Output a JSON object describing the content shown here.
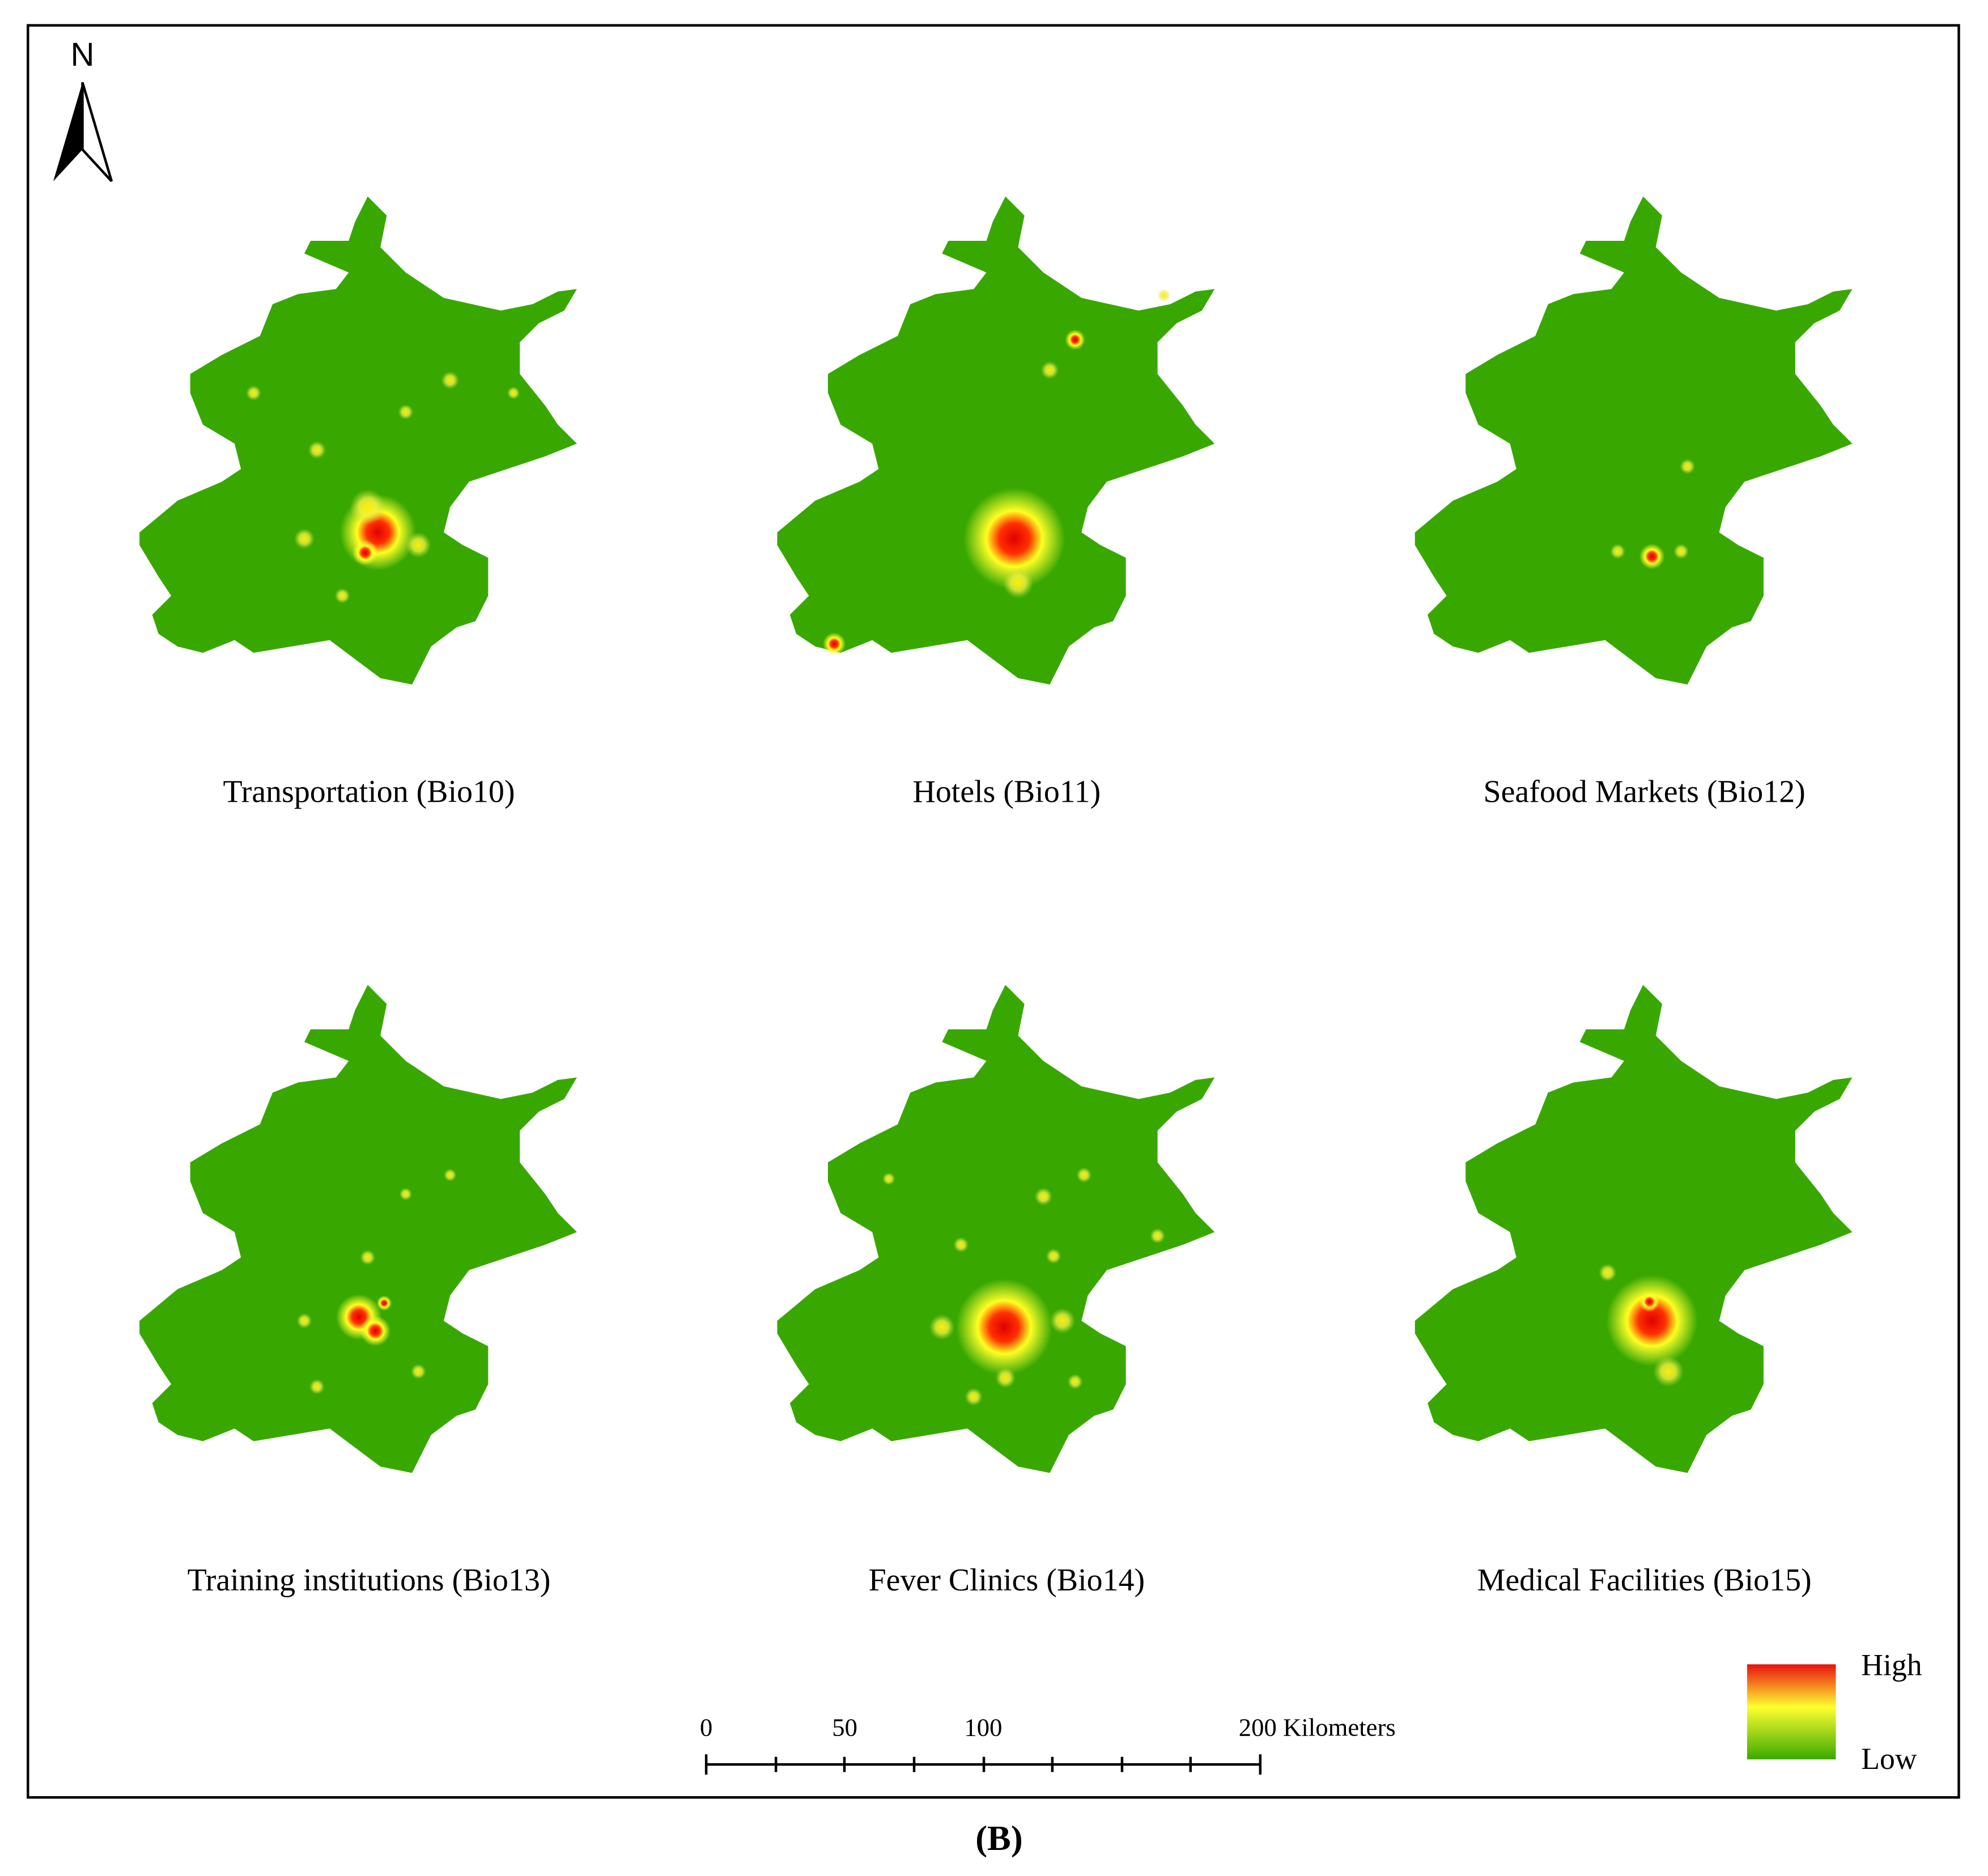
{
  "north": "N",
  "panels": [
    {
      "caption": "Transportation (Bio10)"
    },
    {
      "caption": "Hotels (Bio11)"
    },
    {
      "caption": "Seafood Markets (Bio12)"
    },
    {
      "caption": "Training institutions (Bio13)"
    },
    {
      "caption": "Fever Clinics (Bio14)"
    },
    {
      "caption": "Medical Facilities (Bio15)"
    }
  ],
  "scale_bar": {
    "ticks": [
      0,
      50,
      100,
      200
    ],
    "unit": "Kilometers"
  },
  "legend": {
    "high": "High",
    "low": "Low"
  },
  "figure_label": "(B)"
}
